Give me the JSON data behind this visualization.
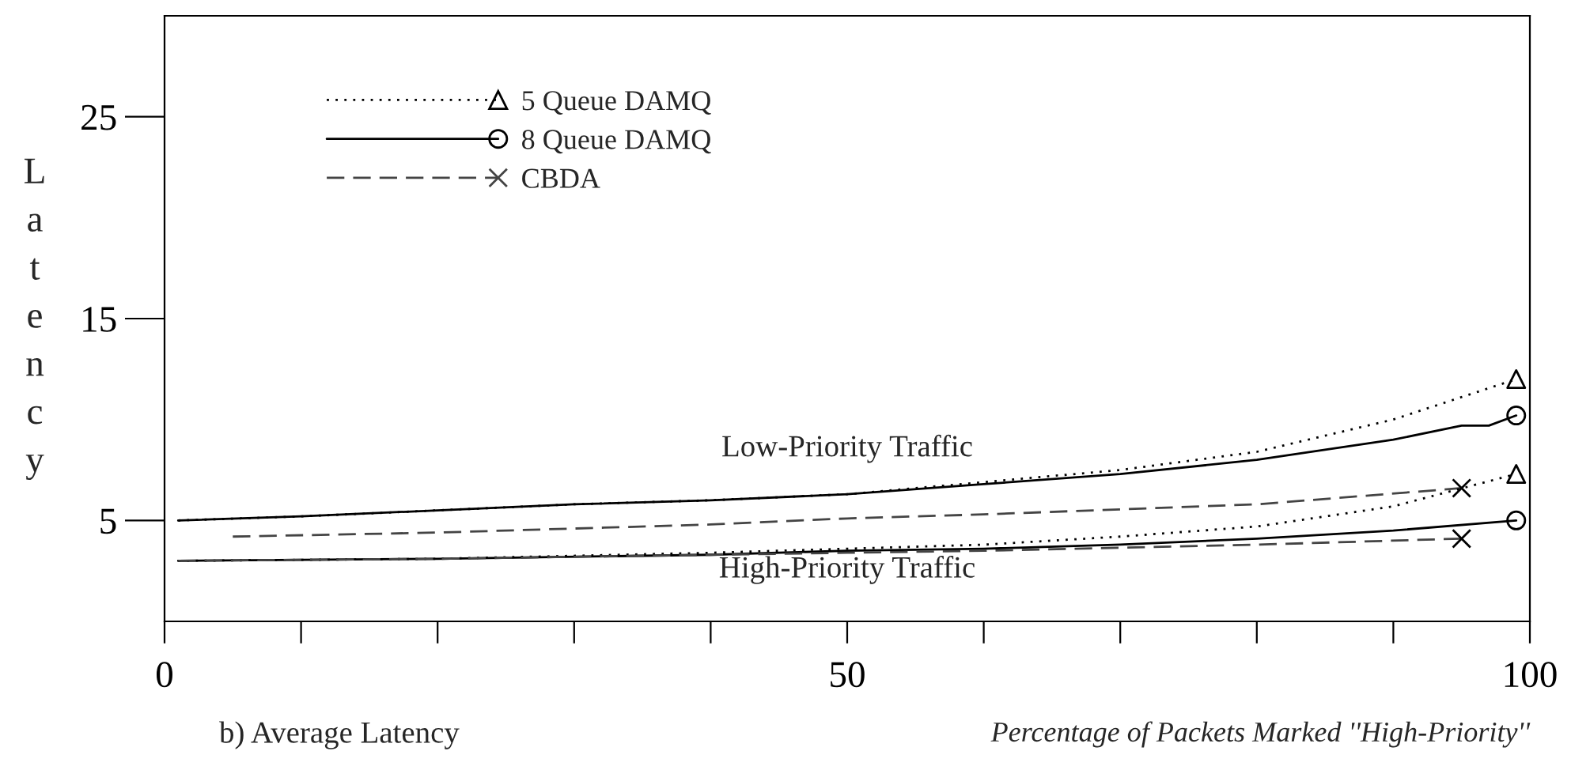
{
  "chart_data": {
    "type": "line",
    "xlabel": "Percentage of Packets Marked ''High-Priority''",
    "ylabel": "Latency",
    "xlim": [
      0,
      100
    ],
    "xticks": [
      0,
      {
        "value": 10,
        "label": null
      },
      {
        "value": 20,
        "label": null
      },
      {
        "value": 30,
        "label": null
      },
      {
        "value": 40,
        "label": null
      },
      50,
      {
        "value": 60,
        "label": null
      },
      {
        "value": 70,
        "label": null
      },
      {
        "value": 80,
        "label": null
      },
      {
        "value": 90,
        "label": null
      },
      100
    ],
    "ylim": [
      0,
      30
    ],
    "yticks": [
      5,
      15,
      25
    ],
    "grid": false,
    "legend": "top left",
    "series": [
      {
        "name": "5 Queue DAMQ",
        "color": "#000000",
        "line_style": "dotted",
        "x": [
          1,
          10,
          20,
          30,
          40,
          50,
          60,
          70,
          80,
          90,
          99
        ],
        "values": [
          5,
          5.2,
          5.5,
          5.8,
          6.0,
          6.3,
          6.9,
          7.5,
          8.4,
          10.0,
          12.0
        ]
      },
      {
        "type": "scatter",
        "color": "#000000",
        "marker": "triangle",
        "x": [
          99,
          99
        ],
        "values": [
          12.0,
          7.3
        ]
      },
      {
        "name": "8 Queue DAMQ",
        "color": "#000000",
        "line_style": "solid",
        "x": [
          1,
          10,
          20,
          30,
          40,
          50,
          60,
          70,
          80,
          90,
          95,
          97,
          99
        ],
        "values": [
          5,
          5.2,
          5.5,
          5.8,
          6.0,
          6.3,
          6.8,
          7.3,
          8.0,
          9.0,
          9.7,
          9.7,
          10.2
        ]
      },
      {
        "type": "scatter",
        "color": "#000000",
        "marker": "circle",
        "x": [
          99,
          99
        ],
        "values": [
          10.2,
          5.0
        ]
      },
      {
        "name": "CBDA",
        "color": "#444444",
        "line_style": "dashed",
        "x": [
          5,
          20,
          40,
          50,
          60,
          80,
          95
        ],
        "values": [
          4.2,
          4.4,
          4.8,
          5.1,
          5.3,
          5.8,
          6.6
        ]
      },
      {
        "type": "scatter",
        "color": "#000000",
        "marker": "cross",
        "x": [
          95,
          95
        ],
        "values": [
          6.6,
          4.1
        ]
      },
      {
        "color": "#000000",
        "line_style": "dotted",
        "x": [
          1,
          20,
          40,
          50,
          60,
          70,
          80,
          90,
          99
        ],
        "values": [
          3.0,
          3.1,
          3.4,
          3.6,
          3.8,
          4.2,
          4.7,
          5.7,
          7.3
        ]
      },
      {
        "color": "#000000",
        "line_style": "solid",
        "x": [
          1,
          20,
          40,
          50,
          60,
          70,
          80,
          90,
          99
        ],
        "values": [
          3.0,
          3.1,
          3.3,
          3.5,
          3.6,
          3.8,
          4.1,
          4.5,
          5.0
        ]
      },
      {
        "color": "#444444",
        "line_style": "dashed",
        "x": [
          1,
          20,
          40,
          50,
          60,
          80,
          95
        ],
        "values": [
          3.0,
          3.1,
          3.3,
          3.4,
          3.5,
          3.8,
          4.1
        ]
      }
    ],
    "annotations": [
      "Low-Priority Traffic",
      "High-Priority Traffic",
      "b) Average Latency"
    ]
  }
}
